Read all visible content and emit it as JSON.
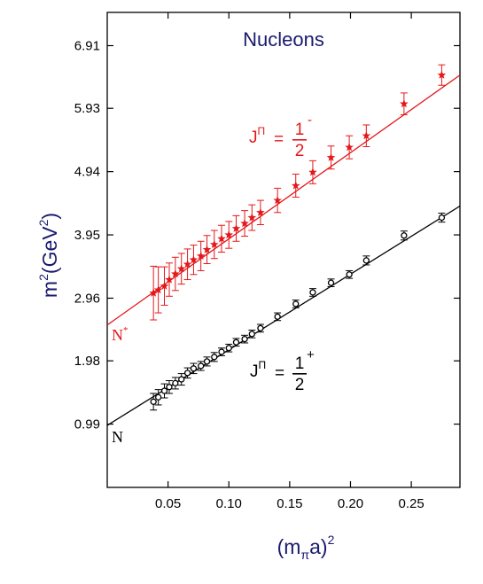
{
  "chart_data": {
    "type": "scatter",
    "title": "Nucleons",
    "xlabel": "(m",
    "xlabel_sub": "π",
    "xlabel_tail": "a)",
    "xlabel_sup": "2",
    "ylabel": "m",
    "ylabel_sup": "2",
    "ylabel_mid": "(GeV",
    "ylabel_sup2": "2",
    "ylabel_end": ")",
    "xlim": [
      0.0,
      0.29
    ],
    "ylim": [
      0.0,
      7.43
    ],
    "x_ticks": [
      {
        "value": 0.05,
        "label": "0.05"
      },
      {
        "value": 0.1,
        "label": "0.10"
      },
      {
        "value": 0.15,
        "label": "0.15"
      },
      {
        "value": 0.2,
        "label": "0.20"
      },
      {
        "value": 0.25,
        "label": "0.25"
      }
    ],
    "y_ticks": [
      {
        "value": 0.99,
        "label": "0.99"
      },
      {
        "value": 1.98,
        "label": "1.98"
      },
      {
        "value": 2.96,
        "label": "2.96"
      },
      {
        "value": 3.95,
        "label": "3.95"
      },
      {
        "value": 4.94,
        "label": "4.94"
      },
      {
        "value": 5.93,
        "label": "5.93"
      },
      {
        "value": 6.91,
        "label": "6.91"
      }
    ],
    "grid": false,
    "series": [
      {
        "name": "N",
        "label_main": "J",
        "label_sup": "Π",
        "label_eq": "=",
        "label_num": "1",
        "label_den": "2",
        "label_parity": "+",
        "color": "#000000",
        "marker": "open-circle",
        "fit": {
          "intercept": 0.97,
          "slope": 11.83
        },
        "x": [
          0.038,
          0.042,
          0.047,
          0.051,
          0.056,
          0.061,
          0.066,
          0.071,
          0.077,
          0.082,
          0.088,
          0.094,
          0.1,
          0.106,
          0.113,
          0.119,
          0.126,
          0.14,
          0.155,
          0.169,
          0.184,
          0.199,
          0.213,
          0.244,
          0.275
        ],
        "y": [
          1.34,
          1.41,
          1.51,
          1.57,
          1.63,
          1.69,
          1.79,
          1.86,
          1.9,
          1.97,
          2.04,
          2.12,
          2.18,
          2.27,
          2.32,
          2.4,
          2.49,
          2.67,
          2.87,
          3.05,
          3.2,
          3.33,
          3.55,
          3.94,
          4.22
        ],
        "err": [
          0.13,
          0.12,
          0.11,
          0.1,
          0.09,
          0.09,
          0.08,
          0.08,
          0.07,
          0.07,
          0.07,
          0.06,
          0.06,
          0.06,
          0.06,
          0.06,
          0.06,
          0.06,
          0.06,
          0.06,
          0.06,
          0.06,
          0.07,
          0.07,
          0.07
        ]
      },
      {
        "name": "N",
        "name_sup": "*",
        "label_main": "J",
        "label_sup": "Π",
        "label_eq": "=",
        "label_num": "1",
        "label_den": "2",
        "label_parity": "-",
        "color": "#e4181b",
        "marker": "filled-star",
        "fit": {
          "intercept": 2.54,
          "slope": 13.48
        },
        "x": [
          0.038,
          0.042,
          0.047,
          0.051,
          0.056,
          0.061,
          0.066,
          0.071,
          0.077,
          0.082,
          0.088,
          0.094,
          0.1,
          0.106,
          0.113,
          0.119,
          0.126,
          0.14,
          0.155,
          0.169,
          0.184,
          0.199,
          0.213,
          0.244,
          0.275
        ],
        "y": [
          3.04,
          3.09,
          3.15,
          3.25,
          3.34,
          3.42,
          3.49,
          3.56,
          3.62,
          3.72,
          3.8,
          3.89,
          3.95,
          4.05,
          4.13,
          4.22,
          4.3,
          4.49,
          4.72,
          4.93,
          5.16,
          5.32,
          5.5,
          6.0,
          6.45
        ],
        "err": [
          0.42,
          0.36,
          0.3,
          0.26,
          0.26,
          0.24,
          0.24,
          0.23,
          0.23,
          0.22,
          0.22,
          0.21,
          0.21,
          0.2,
          0.2,
          0.2,
          0.19,
          0.19,
          0.18,
          0.18,
          0.18,
          0.18,
          0.17,
          0.17,
          0.16
        ]
      }
    ]
  }
}
